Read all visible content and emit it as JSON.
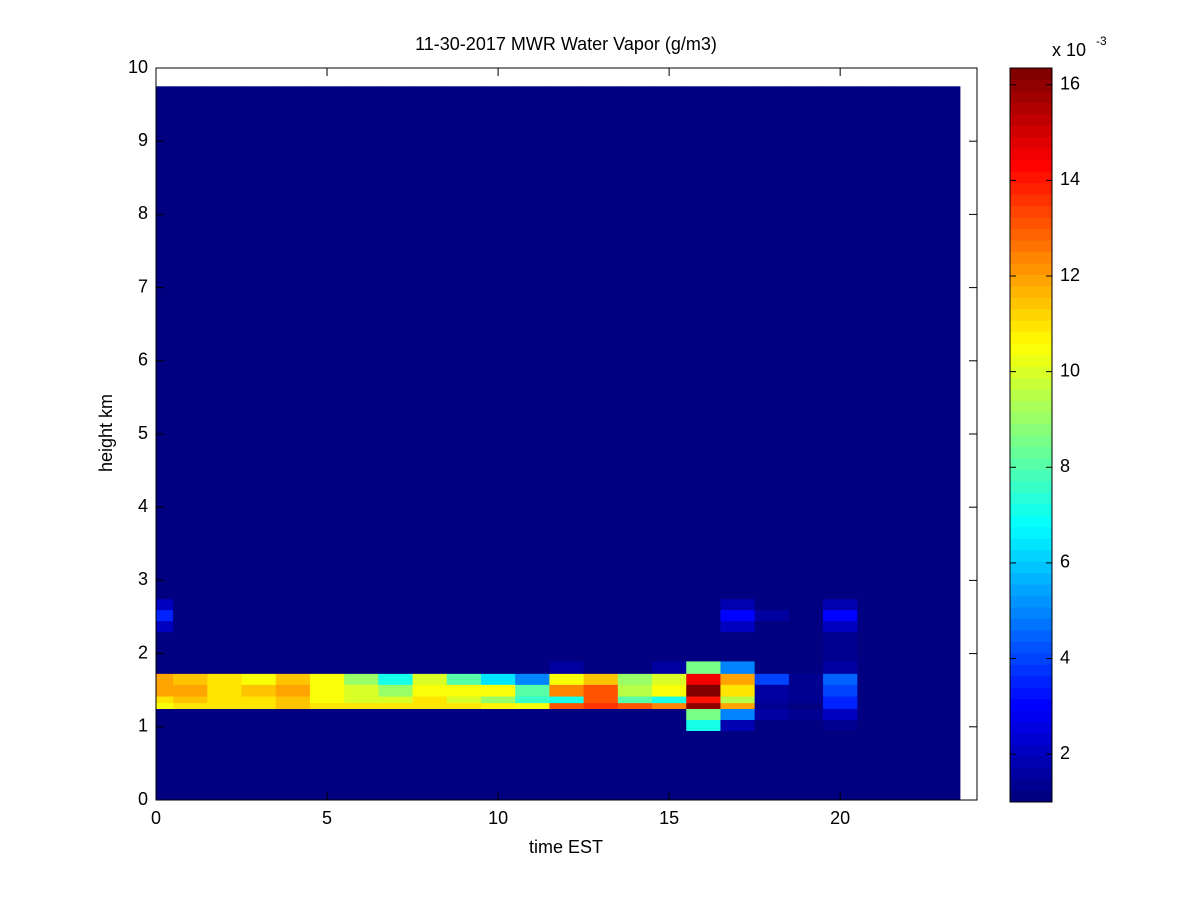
{
  "chart_data": {
    "type": "heatmap",
    "title": "11-30-2017 MWR Water Vapor (g/m3)",
    "x_label": "time EST",
    "y_label": "height km",
    "colorbar_multiplier": "x 10",
    "colorbar_exponent": "-3",
    "colormap": "jet",
    "xlim": [
      0,
      24
    ],
    "xticks": [
      0,
      5,
      10,
      15,
      20
    ],
    "ylim": [
      0,
      10
    ],
    "yticks": [
      0,
      1,
      2,
      3,
      4,
      5,
      6,
      7,
      8,
      9,
      10
    ],
    "clim": [
      1.0,
      16.35
    ],
    "cticks": [
      2,
      4,
      6,
      8,
      10,
      12,
      14,
      16
    ],
    "grid": false,
    "x_edges": [
      0,
      0.5,
      1.5,
      2.5,
      3.5,
      4.5,
      5.5,
      6.5,
      7.5,
      8.5,
      9.5,
      10.5,
      11.5,
      12.5,
      13.5,
      14.5,
      15.5,
      16.5,
      17.5,
      18.5,
      19.5,
      20.5,
      21.5,
      22.5,
      23.5
    ],
    "y_edges": [
      0,
      0.95,
      1.1,
      1.25,
      1.33,
      1.42,
      1.58,
      1.73,
      1.9,
      2.3,
      2.45,
      2.6,
      2.75,
      9.75
    ],
    "z": [
      [
        1.1,
        1.1,
        1.1,
        1.1,
        1.1,
        1.1,
        1.1,
        1.1,
        1.1,
        1.1,
        1.1,
        1.1,
        1.1,
        1.1,
        1.1,
        1.1,
        1.1,
        1.1,
        1.1,
        1.1,
        1.1,
        1.1,
        1.1,
        1.1
      ],
      [
        1.1,
        1.1,
        1.1,
        1.1,
        1.1,
        1.1,
        1.1,
        1.1,
        1.1,
        1.1,
        1.1,
        1.1,
        1.1,
        1.1,
        1.1,
        1.1,
        7,
        1.8,
        1.1,
        1.1,
        1.3,
        1.1,
        1.1,
        1.1
      ],
      [
        1.1,
        1.1,
        1.1,
        1.1,
        1.1,
        1.1,
        1.1,
        1.1,
        1.1,
        1.1,
        1.1,
        1.1,
        1.1,
        1.1,
        1.1,
        1.1,
        8.5,
        5,
        1.5,
        1.3,
        2,
        1.1,
        1.1,
        1.1
      ],
      [
        10.5,
        11,
        11,
        11,
        11.5,
        11,
        11,
        11,
        11,
        11,
        10.8,
        10.5,
        13,
        13.5,
        13,
        12.5,
        16,
        12,
        1.3,
        1.2,
        3.5,
        1.1,
        1.1,
        1.1
      ],
      [
        11,
        11.5,
        11,
        11,
        11.5,
        10.5,
        10,
        10,
        11,
        10,
        9,
        7.5,
        7,
        13,
        8,
        7,
        14,
        9.5,
        1.5,
        1.3,
        3.5,
        1.1,
        1.1,
        1.1
      ],
      [
        11.8,
        11.8,
        11,
        11.5,
        12,
        10.5,
        10,
        9,
        10.5,
        10.5,
        10.5,
        8,
        12.5,
        13,
        9.5,
        10.5,
        16.3,
        11,
        1.5,
        1.4,
        4,
        1.1,
        1.1,
        1.1
      ],
      [
        12,
        11.5,
        11,
        10.5,
        11.5,
        10.5,
        9,
        7,
        10,
        8,
        6.5,
        5,
        10.5,
        11.5,
        9,
        10,
        14.5,
        12,
        4,
        1.4,
        4.5,
        1.1,
        1.1,
        1.1
      ],
      [
        1.1,
        1.1,
        1.1,
        1.1,
        1.1,
        1.1,
        1.1,
        1.1,
        1.1,
        1.1,
        1.1,
        1.1,
        1.5,
        1.1,
        1.1,
        1.5,
        8.5,
        5,
        1.1,
        1.1,
        1.5,
        1.1,
        1.1,
        1.1
      ],
      [
        1.1,
        1.1,
        1.1,
        1.1,
        1.1,
        1.1,
        1.1,
        1.1,
        1.1,
        1.1,
        1.1,
        1.1,
        1.1,
        1.1,
        1.1,
        1.1,
        1.1,
        1.1,
        1.1,
        1.1,
        1.3,
        1.1,
        1.1,
        1.1
      ],
      [
        2,
        1.1,
        1.1,
        1.1,
        1.1,
        1.1,
        1.1,
        1.1,
        1.1,
        1.1,
        1.1,
        1.1,
        1.1,
        1.1,
        1.1,
        1.1,
        1.1,
        2,
        1.1,
        1.1,
        2,
        1.1,
        1.1,
        1.1
      ],
      [
        3.5,
        1.1,
        1.1,
        1.1,
        1.1,
        1.1,
        1.1,
        1.1,
        1.1,
        1.1,
        1.1,
        1.1,
        1.1,
        1.1,
        1.1,
        1.1,
        1.1,
        3,
        1.6,
        1.1,
        3,
        1.1,
        1.1,
        1.1
      ],
      [
        2,
        1.1,
        1.1,
        1.1,
        1.1,
        1.1,
        1.1,
        1.1,
        1.1,
        1.1,
        1.1,
        1.1,
        1.1,
        1.1,
        1.1,
        1.1,
        1.1,
        1.8,
        1.1,
        1.1,
        1.8,
        1.1,
        1.1,
        1.1
      ],
      [
        1.1,
        1.1,
        1.1,
        1.1,
        1.1,
        1.1,
        1.1,
        1.1,
        1.1,
        1.1,
        1.1,
        1.1,
        1.1,
        1.1,
        1.1,
        1.1,
        1.1,
        1.1,
        1.1,
        1.1,
        1.1,
        1.1,
        1.1,
        1.1
      ]
    ]
  }
}
